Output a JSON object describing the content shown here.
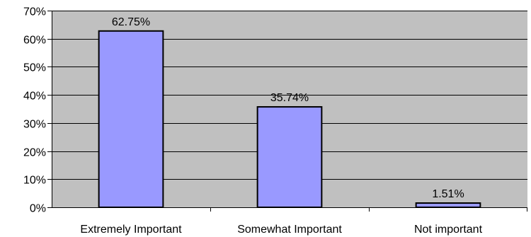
{
  "chart_data": {
    "type": "bar",
    "categories": [
      "Extremely Important",
      "Somewhat Important",
      "Not important"
    ],
    "values": [
      62.75,
      35.74,
      1.51
    ],
    "data_labels": [
      "62.75%",
      "35.74%",
      "1.51%"
    ],
    "ylim": [
      0,
      70
    ],
    "yticks": [
      0,
      10,
      20,
      30,
      40,
      50,
      60,
      70
    ],
    "ytick_labels": [
      "0%",
      "10%",
      "20%",
      "30%",
      "40%",
      "50%",
      "60%",
      "70%"
    ],
    "grid": true,
    "legend": "none",
    "colors": {
      "plot_background": "#C0C0C0",
      "bar_fill": "#9999FF",
      "bar_stroke": "#000000",
      "gridline": "#000000"
    }
  }
}
